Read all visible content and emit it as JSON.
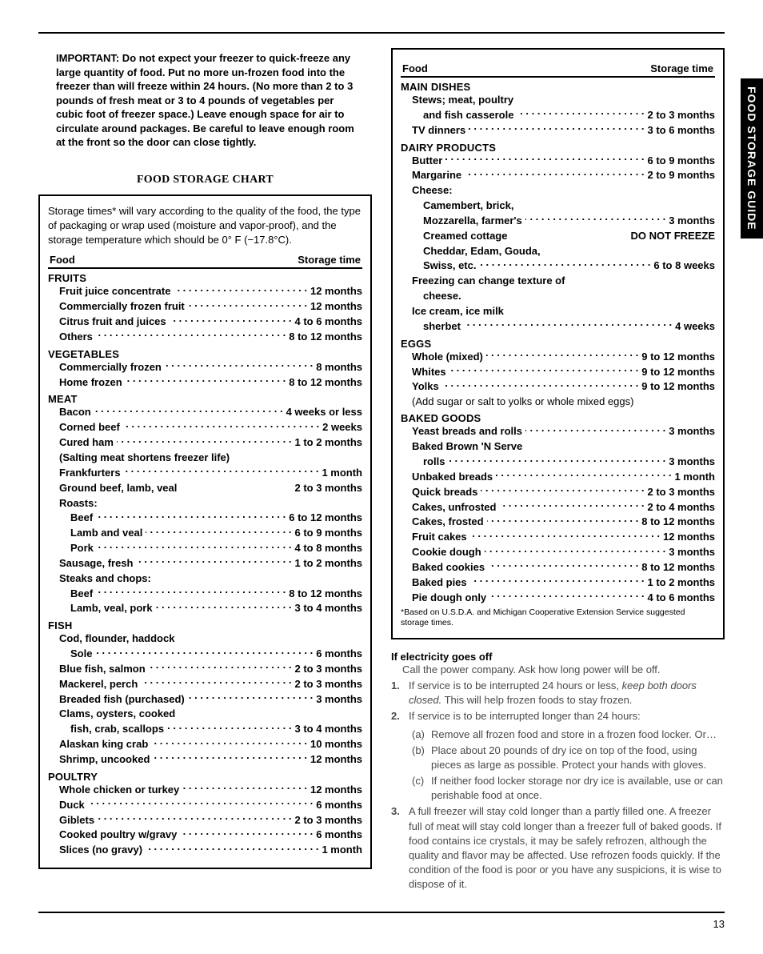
{
  "page": {
    "number": "13",
    "side_tab": "FOOD STORAGE GUIDE",
    "important": "IMPORTANT: Do not expect your freezer to quick-freeze any large quantity of food. Put no more un-frozen food into the freezer than will freeze within 24 hours. (No more than 2 to 3 pounds of fresh meat or 3 to 4 pounds of vegetables per cubic foot of freezer space.) Leave enough space for air to circulate around packages. Be careful to leave enough room at the front so the door can close tightly.",
    "chart_title": "FOOD STORAGE CHART",
    "chart_intro": "Storage times* will vary according to the quality of the food, the type of packaging or wrap used (moisture and vapor-proof), and the storage temperature which should be 0° F (−17.8°C).",
    "head_food": "Food",
    "head_time": "Storage time",
    "footnote": "*Based on U.S.D.A. and Michigan Cooperative Extension Service suggested storage times.",
    "colors": {
      "black": "#000000",
      "muted": "#4a4a4a",
      "bg": "#ffffff"
    },
    "fonts": {
      "body_pt": 10,
      "heading_pt": 11,
      "footnote_pt": 8
    }
  },
  "col1": [
    {
      "type": "cat",
      "text": "FRUITS"
    },
    {
      "type": "item",
      "label": "Fruit juice concentrate",
      "time": "12 months"
    },
    {
      "type": "item",
      "label": "Commercially frozen fruit",
      "time": "12 months"
    },
    {
      "type": "item",
      "label": "Citrus fruit and juices",
      "time": "4 to 6 months"
    },
    {
      "type": "item",
      "label": "Others",
      "time": "8 to 12 months"
    },
    {
      "type": "cat",
      "text": "VEGETABLES"
    },
    {
      "type": "item",
      "label": "Commercially frozen",
      "time": "8 months"
    },
    {
      "type": "item",
      "label": "Home frozen",
      "time": "8 to 12 months"
    },
    {
      "type": "cat",
      "text": "MEAT"
    },
    {
      "type": "item",
      "label": "Bacon",
      "time": "4 weeks or less"
    },
    {
      "type": "item",
      "label": "Corned beef",
      "time": "2 weeks"
    },
    {
      "type": "item",
      "label": "Cured ham",
      "time": "1 to 2 months"
    },
    {
      "type": "note",
      "text": "(Salting meat shortens freezer life)"
    },
    {
      "type": "item",
      "label": "Frankfurters",
      "time": "1 month"
    },
    {
      "type": "item",
      "label": "Ground beef, lamb, veal",
      "time": "2 to 3 months",
      "nolead": true
    },
    {
      "type": "note",
      "text": "Roasts:"
    },
    {
      "type": "item",
      "sub": true,
      "label": "Beef",
      "time": "6 to 12 months"
    },
    {
      "type": "item",
      "sub": true,
      "label": "Lamb and veal",
      "time": "6 to 9 months"
    },
    {
      "type": "item",
      "sub": true,
      "label": "Pork",
      "time": "4 to 8 months"
    },
    {
      "type": "item",
      "label": "Sausage, fresh",
      "time": "1 to 2 months"
    },
    {
      "type": "note",
      "text": "Steaks and chops:"
    },
    {
      "type": "item",
      "sub": true,
      "label": "Beef",
      "time": "8 to 12 months"
    },
    {
      "type": "item",
      "sub": true,
      "label": "Lamb, veal, pork",
      "time": "3 to 4 months"
    },
    {
      "type": "cat",
      "text": "FISH"
    },
    {
      "type": "note",
      "text": "Cod, flounder, haddock"
    },
    {
      "type": "item",
      "sub": true,
      "label": "Sole",
      "time": "6 months"
    },
    {
      "type": "item",
      "label": "Blue fish, salmon",
      "time": "2 to 3 months"
    },
    {
      "type": "item",
      "label": "Mackerel, perch",
      "time": "2 to 3 months"
    },
    {
      "type": "item",
      "label": "Breaded fish (purchased)",
      "time": "3 months"
    },
    {
      "type": "note",
      "text": "Clams, oysters, cooked"
    },
    {
      "type": "item",
      "sub": true,
      "label": "fish, crab, scallops",
      "time": "3 to 4 months"
    },
    {
      "type": "item",
      "label": "Alaskan king crab",
      "time": "10 months"
    },
    {
      "type": "item",
      "label": "Shrimp, uncooked",
      "time": "12 months"
    },
    {
      "type": "cat",
      "text": "POULTRY"
    },
    {
      "type": "item",
      "label": "Whole chicken or turkey",
      "time": "12 months"
    },
    {
      "type": "item",
      "label": "Duck",
      "time": "6 months"
    },
    {
      "type": "item",
      "label": "Giblets",
      "time": "2 to 3 months"
    },
    {
      "type": "item",
      "label": "Cooked poultry w/gravy",
      "time": "6 months"
    },
    {
      "type": "item",
      "label": "Slices (no gravy)",
      "time": "1 month"
    }
  ],
  "col2": [
    {
      "type": "cat",
      "text": "MAIN DISHES"
    },
    {
      "type": "note",
      "text": "Stews; meat, poultry"
    },
    {
      "type": "item",
      "sub": true,
      "label": "and fish casserole",
      "time": "2 to 3 months"
    },
    {
      "type": "item",
      "label": "TV dinners",
      "time": "3 to 6 months"
    },
    {
      "type": "cat",
      "text": "DAIRY PRODUCTS"
    },
    {
      "type": "item",
      "label": "Butter",
      "time": "6 to 9 months"
    },
    {
      "type": "item",
      "label": "Margarine",
      "time": "2 to 9 months"
    },
    {
      "type": "note",
      "text": "Cheese:"
    },
    {
      "type": "note2",
      "text": "Camembert, brick,"
    },
    {
      "type": "item",
      "sub": true,
      "label": "Mozzarella, farmer's",
      "time": "3 months"
    },
    {
      "type": "item",
      "sub": true,
      "label": "Creamed cottage",
      "time": "DO NOT FREEZE",
      "nolead": true
    },
    {
      "type": "note2",
      "text": "Cheddar, Edam, Gouda,"
    },
    {
      "type": "item",
      "sub": true,
      "label": "Swiss, etc.",
      "time": "6 to 8 weeks"
    },
    {
      "type": "note",
      "text": "Freezing can change texture of"
    },
    {
      "type": "note2",
      "text": "cheese."
    },
    {
      "type": "note",
      "text": "Ice cream, ice milk"
    },
    {
      "type": "item",
      "sub": true,
      "label": "sherbet",
      "time": "4 weeks"
    },
    {
      "type": "cat",
      "text": "EGGS"
    },
    {
      "type": "item",
      "label": "Whole (mixed)",
      "time": "9 to 12 months"
    },
    {
      "type": "item",
      "label": "Whites",
      "time": "9 to 12 months"
    },
    {
      "type": "item",
      "label": "Yolks",
      "time": "9 to 12 months"
    },
    {
      "type": "paren",
      "text": "(Add sugar or salt to yolks or whole mixed eggs)"
    },
    {
      "type": "cat",
      "text": "BAKED GOODS"
    },
    {
      "type": "item",
      "label": "Yeast breads and rolls",
      "time": "3 months"
    },
    {
      "type": "note",
      "text": "Baked Brown 'N Serve"
    },
    {
      "type": "item",
      "sub": true,
      "label": "rolls",
      "time": "3 months"
    },
    {
      "type": "item",
      "label": "Unbaked breads",
      "time": "1 month"
    },
    {
      "type": "item",
      "label": "Quick breads",
      "time": "2 to 3 months"
    },
    {
      "type": "item",
      "label": "Cakes, unfrosted",
      "time": "2 to 4 months"
    },
    {
      "type": "item",
      "label": "Cakes, frosted",
      "time": "8 to 12 months"
    },
    {
      "type": "item",
      "label": "Fruit cakes",
      "time": "12 months"
    },
    {
      "type": "item",
      "label": "Cookie dough",
      "time": "3 months"
    },
    {
      "type": "item",
      "label": "Baked cookies",
      "time": "8 to 12 months"
    },
    {
      "type": "item",
      "label": "Baked pies",
      "time": "1 to 2 months"
    },
    {
      "type": "item",
      "label": "Pie dough only",
      "time": "4 to 6 months"
    }
  ],
  "electricity": {
    "head": "If electricity goes off",
    "intro": "Call the power company. Ask how long power will be off.",
    "items": [
      {
        "n": "1.",
        "text": "If service is to be interrupted 24 hours or less, keep both doors closed.  This will help frozen foods to stay frozen.",
        "ital_phrase": "keep both doors closed."
      },
      {
        "n": "2.",
        "text": "If service is to be interrupted longer than 24 hours:",
        "sub": [
          {
            "m": "(a)",
            "text": "Remove all frozen food and store in a frozen food locker. Or…"
          },
          {
            "m": "(b)",
            "text": "Place about 20 pounds of dry ice on top of the food, using pieces as large as possible. Protect your hands with gloves."
          },
          {
            "m": "(c)",
            "text": "If neither food locker storage nor dry ice is available, use or can perishable food at once."
          }
        ]
      },
      {
        "n": "3.",
        "text": "A full freezer will stay cold longer than a partly filled one. A freezer full of meat will stay cold longer than a freezer full of baked goods. If food contains ice crystals, it may be safely refrozen, although the quality and flavor may be affected. Use refrozen foods quickly. If the condition of the food is poor or you have any suspicions, it is wise to dispose of it."
      }
    ]
  }
}
